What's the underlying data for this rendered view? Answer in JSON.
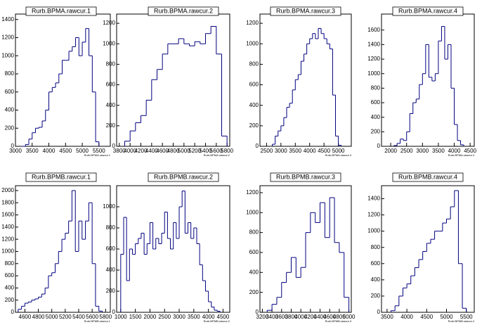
{
  "chart_data": [
    {
      "type": "histogram",
      "title": "Rurb.BPMA.rawcur.1",
      "xlabel": "Rurb.BPMA.rawcur.1",
      "color": "#000080",
      "bins": [
        3200,
        3300,
        3400,
        3500,
        3600,
        3700,
        3800,
        3900,
        4000,
        4100,
        4200,
        4300,
        4400,
        4500,
        4600,
        4700,
        4800,
        4900,
        5000,
        5100,
        5200,
        5300,
        5400,
        5500
      ],
      "counts": [
        0,
        20,
        80,
        150,
        200,
        210,
        280,
        400,
        600,
        650,
        700,
        800,
        950,
        950,
        1050,
        1100,
        1200,
        1000,
        1150,
        1300,
        1000,
        600,
        50
      ],
      "xlim": [
        3000,
        5840
      ],
      "ylim": [
        0,
        1460
      ],
      "xticks": [
        3000,
        3500,
        4000,
        4500,
        5000,
        5500
      ],
      "yticks": [
        0,
        200,
        400,
        600,
        800,
        1000,
        1200,
        1400
      ]
    },
    {
      "type": "histogram",
      "title": "Rurb.BPMA.rawcur.2",
      "xlabel": "Rurb.BPMA.rawcur.2",
      "color": "#000080",
      "bins": [
        3900,
        4000,
        4100,
        4200,
        4300,
        4400,
        4500,
        4600,
        4700,
        4800,
        4900,
        5000,
        5100,
        5200,
        5300,
        5400,
        5500,
        5600,
        5700,
        5800
      ],
      "counts": [
        50,
        150,
        230,
        300,
        450,
        650,
        750,
        900,
        1000,
        1000,
        1050,
        1000,
        980,
        1020,
        1000,
        1100,
        1170,
        900,
        100
      ],
      "xlim": [
        3750,
        5850
      ],
      "ylim": [
        0,
        1290
      ],
      "xticks": [
        3800,
        4000,
        4200,
        4400,
        4600,
        4800,
        5000,
        5200,
        5400,
        5600,
        5800
      ],
      "yticks": [
        0,
        200,
        400,
        600,
        800,
        1000,
        1200
      ]
    },
    {
      "type": "histogram",
      "title": "Rurb.BPMA.rawcur.3",
      "xlabel": "Rurb.BPMA.rawcur.3",
      "color": "#000080",
      "bins": [
        2700,
        2800,
        2900,
        3000,
        3100,
        3200,
        3300,
        3400,
        3500,
        3600,
        3700,
        3800,
        3900,
        4000,
        4100,
        4200,
        4300,
        4400,
        4500,
        4600,
        4700,
        4800,
        4900,
        5000,
        5100
      ],
      "counts": [
        20,
        100,
        150,
        200,
        280,
        380,
        420,
        550,
        650,
        700,
        830,
        900,
        1000,
        1050,
        1100,
        1050,
        1150,
        1100,
        1050,
        1000,
        950,
        500,
        100,
        10
      ],
      "xlim": [
        2270,
        5450
      ],
      "ylim": [
        0,
        1290
      ],
      "xticks": [
        2500,
        3000,
        3500,
        4000,
        4500,
        5000
      ],
      "yticks": [
        0,
        200,
        400,
        600,
        800,
        1000,
        1200
      ]
    },
    {
      "type": "histogram",
      "title": "Rurb.BPMA.rawcur.4",
      "xlabel": "Rurb.BPMA.rawcur.4",
      "color": "#000080",
      "bins": [
        2100,
        2200,
        2300,
        2400,
        2500,
        2600,
        2700,
        2800,
        2900,
        3000,
        3100,
        3200,
        3300,
        3400,
        3500,
        3600,
        3700,
        3800,
        3900,
        4000,
        4100,
        4200,
        4300
      ],
      "counts": [
        10,
        40,
        100,
        80,
        200,
        450,
        600,
        650,
        850,
        1000,
        1400,
        950,
        900,
        1000,
        1450,
        1650,
        1200,
        1400,
        800,
        300,
        80,
        20
      ],
      "xlim": [
        1710,
        4630
      ],
      "ylim": [
        0,
        1820
      ],
      "xticks": [
        2000,
        2500,
        3000,
        3500,
        4000,
        4500
      ],
      "yticks": [
        0,
        200,
        400,
        600,
        800,
        1000,
        1200,
        1400,
        1600
      ]
    },
    {
      "type": "histogram",
      "title": "Rurb.BPMB.rawcur.1",
      "xlabel": "Rurb.BPMB.rawcur.1",
      "color": "#000080",
      "bins": [
        4500,
        4550,
        4600,
        4650,
        4700,
        4750,
        4800,
        4850,
        4900,
        4950,
        5000,
        5050,
        5100,
        5150,
        5200,
        5250,
        5300,
        5350,
        5400,
        5450,
        5500,
        5550,
        5600,
        5650,
        5700,
        5750
      ],
      "counts": [
        50,
        100,
        150,
        170,
        200,
        220,
        250,
        300,
        400,
        600,
        650,
        800,
        1000,
        1200,
        1300,
        1500,
        2000,
        1000,
        1500,
        1200,
        1500,
        1800,
        800,
        100,
        20
      ],
      "xlim": [
        4460,
        5870
      ],
      "ylim": [
        0,
        2080
      ],
      "xticks": [
        4600,
        4800,
        5000,
        5200,
        5400,
        5600,
        5800
      ],
      "yticks": [
        0,
        200,
        400,
        600,
        800,
        1000,
        1200,
        1400,
        1600,
        1800,
        2000
      ]
    },
    {
      "type": "histogram",
      "title": "Rurb.BPMB.rawcur.2",
      "xlabel": "Rurb.BPMB.rawcur.2",
      "color": "#000080",
      "bins": [
        1000,
        1100,
        1200,
        1300,
        1400,
        1500,
        1600,
        1700,
        1800,
        1900,
        2000,
        2100,
        2200,
        2300,
        2400,
        2500,
        2600,
        2700,
        2800,
        2900,
        3000,
        3100,
        3200,
        3300,
        3400,
        3500,
        3600,
        3700,
        3800,
        3900,
        4000,
        4100,
        4200,
        4300,
        4400
      ],
      "counts": [
        550,
        900,
        300,
        600,
        550,
        650,
        700,
        750,
        550,
        650,
        850,
        600,
        700,
        650,
        750,
        950,
        700,
        600,
        850,
        700,
        1000,
        1150,
        750,
        850,
        700,
        800,
        650,
        450,
        300,
        200,
        100,
        50,
        20,
        10
      ],
      "xlim": [
        860,
        4730
      ],
      "ylim": [
        0,
        1200
      ],
      "xticks": [
        1000,
        1500,
        2000,
        2500,
        3000,
        3500,
        4000,
        4500
      ],
      "yticks": [
        0,
        200,
        400,
        600,
        800,
        1000
      ]
    },
    {
      "type": "histogram",
      "title": "Rurb.BPMB.rawcur.3",
      "xlabel": "Rurb.BPMB.rawcur.3",
      "color": "#000080",
      "bins": [
        3300,
        3400,
        3500,
        3600,
        3700,
        3800,
        3900,
        4000,
        4100,
        4200,
        4300,
        4400,
        4500,
        4600,
        4700,
        4800,
        4900,
        5000
      ],
      "counts": [
        20,
        80,
        150,
        300,
        400,
        550,
        350,
        450,
        800,
        1000,
        900,
        1100,
        750,
        1150,
        700,
        600,
        150
      ],
      "xlim": [
        3150,
        5050
      ],
      "ylim": [
        0,
        1270
      ],
      "xticks": [
        3200,
        3400,
        3600,
        3800,
        4000,
        4200,
        4400,
        4600,
        4800,
        5000
      ],
      "yticks": [
        0,
        200,
        400,
        600,
        800,
        1000,
        1200
      ]
    },
    {
      "type": "histogram",
      "title": "Rurb.BPMB.rawcur.4",
      "xlabel": "Rurb.BPMB.rawcur.4",
      "color": "#000080",
      "bins": [
        3600,
        3700,
        3800,
        3900,
        4000,
        4100,
        4200,
        4300,
        4400,
        4500,
        4600,
        4700,
        4800,
        4900,
        5000,
        5100,
        5200,
        5300,
        5400,
        5500
      ],
      "counts": [
        20,
        80,
        200,
        300,
        350,
        450,
        550,
        650,
        750,
        850,
        900,
        1000,
        1000,
        1100,
        1150,
        1300,
        1500,
        600,
        50
      ],
      "xlim": [
        3360,
        5700
      ],
      "ylim": [
        0,
        1560
      ],
      "xticks": [
        3500,
        4000,
        4500,
        5000,
        5500
      ],
      "yticks": [
        0,
        200,
        400,
        600,
        800,
        1000,
        1200,
        1400
      ]
    }
  ]
}
